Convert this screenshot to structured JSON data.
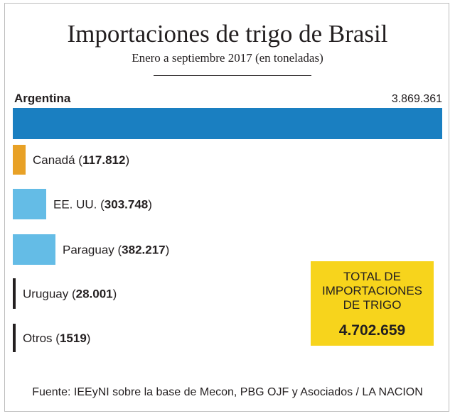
{
  "title": "Importaciones de trigo de Brasil",
  "subtitle": "Enero a septiembre 2017 (en toneladas)",
  "chart_data": {
    "type": "bar",
    "orientation": "horizontal",
    "title": "Importaciones de trigo de Brasil",
    "subtitle": "Enero a septiembre 2017 (en toneladas)",
    "categories": [
      "Argentina",
      "Canadá",
      "EE. UU.",
      "Paraguay",
      "Uruguay",
      "Otros"
    ],
    "values": [
      3869361,
      117812,
      303748,
      382217,
      28001,
      1519
    ],
    "value_labels": [
      "3.869.361",
      "117.812",
      "303.748",
      "382.217",
      "28.001",
      "1519"
    ],
    "colors": [
      "#1a7fc1",
      "#e8a126",
      "#64bce6",
      "#64bce6",
      "#231f20",
      "#231f20"
    ],
    "xlim": [
      0,
      3869361
    ],
    "grid": false,
    "legend": "none"
  },
  "total": {
    "label": "TOTAL DE IMPORTACIONES DE TRIGO",
    "value": "4.702.659"
  },
  "source": "Fuente: IEEyNI sobre la base de Mecon, PBG OJF y Asociados / LA NACION"
}
